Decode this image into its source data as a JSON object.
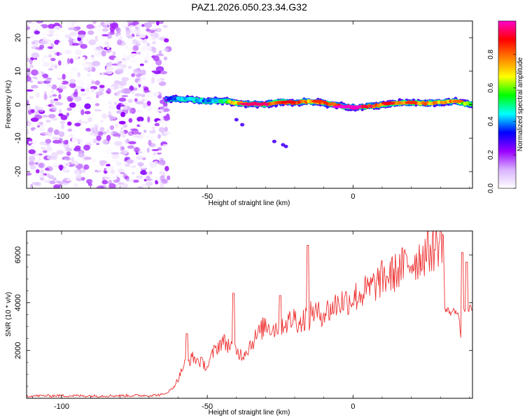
{
  "title": "PAZ1.2026.050.23.34.G32",
  "chart_data": [
    {
      "type": "heatmap",
      "title": "PAZ1.2026.050.23.34.G32",
      "xlabel": "Height of straight line (km)",
      "ylabel": "Frequency (Hz)",
      "xlim": [
        -112,
        41
      ],
      "ylim": [
        -25,
        25
      ],
      "xticks": [
        -100,
        -50,
        0
      ],
      "yticks": [
        -20,
        -10,
        0,
        10,
        20
      ],
      "colorbar": {
        "label": "Normalized spectral amplitude",
        "range": [
          0,
          1
        ],
        "ticks": [
          "0.0",
          "0.2",
          "0.4",
          "0.6",
          "0.8"
        ],
        "colors": [
          "#ffffff",
          "#d9b3ff",
          "#9900ff",
          "#0000ff",
          "#00ffff",
          "#00ff00",
          "#ffff00",
          "#ff8000",
          "#ff0000",
          "#ff00cc"
        ]
      },
      "noise_region": {
        "x_range": [
          -112,
          -64
        ],
        "freq_range": [
          -25,
          25
        ],
        "amplitude": "low (0.0-0.15)"
      },
      "ridge": {
        "x": [
          -64,
          -60,
          -55,
          -50,
          -45,
          -40,
          -35,
          -30,
          -25,
          -20,
          -15,
          -10,
          -5,
          0,
          5,
          10,
          15,
          20,
          25,
          30,
          35,
          41
        ],
        "freq": [
          1.5,
          1.8,
          1.5,
          1.0,
          1.2,
          0.5,
          0.2,
          0.2,
          0.8,
          0.6,
          1.0,
          0.5,
          -0.3,
          -0.8,
          -0.6,
          0.0,
          0.5,
          0.6,
          0.4,
          0.6,
          1.0,
          0.0
        ],
        "amplitude": [
          0.25,
          0.45,
          0.45,
          0.4,
          0.5,
          0.75,
          0.95,
          0.95,
          0.8,
          0.9,
          0.75,
          0.8,
          0.9,
          1.0,
          0.9,
          0.85,
          0.8,
          0.8,
          0.8,
          0.75,
          0.75,
          0.5
        ]
      }
    },
    {
      "type": "line",
      "xlabel": "Height of straight line (km)",
      "ylabel": "SNR (10 * v/v)",
      "xlim": [
        -112,
        41
      ],
      "ylim": [
        0,
        7000
      ],
      "xticks": [
        -100,
        -50,
        0
      ],
      "yticks": [
        2000,
        4000,
        6000
      ],
      "color": "#ee3333",
      "series": [
        {
          "name": "SNR",
          "x": [
            -112,
            -100,
            -90,
            -80,
            -70,
            -65,
            -62,
            -60,
            -58,
            -55,
            -52,
            -50,
            -48,
            -45,
            -42,
            -40,
            -38,
            -36,
            -35,
            -33,
            -30,
            -27,
            -25,
            -22,
            -20,
            -18,
            -16,
            -15,
            -14,
            -12,
            -10,
            -8,
            -5,
            -2,
            0,
            3,
            5,
            8,
            10,
            12,
            15,
            18,
            20,
            22,
            25,
            28,
            30,
            31,
            31.5,
            34,
            36,
            37,
            38,
            39,
            41
          ],
          "y": [
            100,
            110,
            100,
            110,
            120,
            150,
            400,
            800,
            1400,
            1700,
            1500,
            1300,
            1900,
            2400,
            2200,
            2000,
            1800,
            2100,
            2300,
            2600,
            3100,
            2900,
            3100,
            3200,
            3400,
            3100,
            3500,
            3300,
            3700,
            3500,
            3600,
            3700,
            4000,
            4100,
            4200,
            4400,
            4500,
            4800,
            5000,
            5100,
            5300,
            5600,
            5700,
            5800,
            6100,
            6300,
            6600,
            6800,
            3700,
            3600,
            3700,
            2600,
            3600,
            3800,
            3700
          ]
        }
      ],
      "spikes": [
        {
          "x": -57,
          "y": 2700
        },
        {
          "x": -41,
          "y": 4400
        },
        {
          "x": -25,
          "y": 4300
        },
        {
          "x": -15.5,
          "y": 6400
        },
        {
          "x": 37.5,
          "y": 6100
        },
        {
          "x": 39,
          "y": 5700
        }
      ]
    }
  ]
}
